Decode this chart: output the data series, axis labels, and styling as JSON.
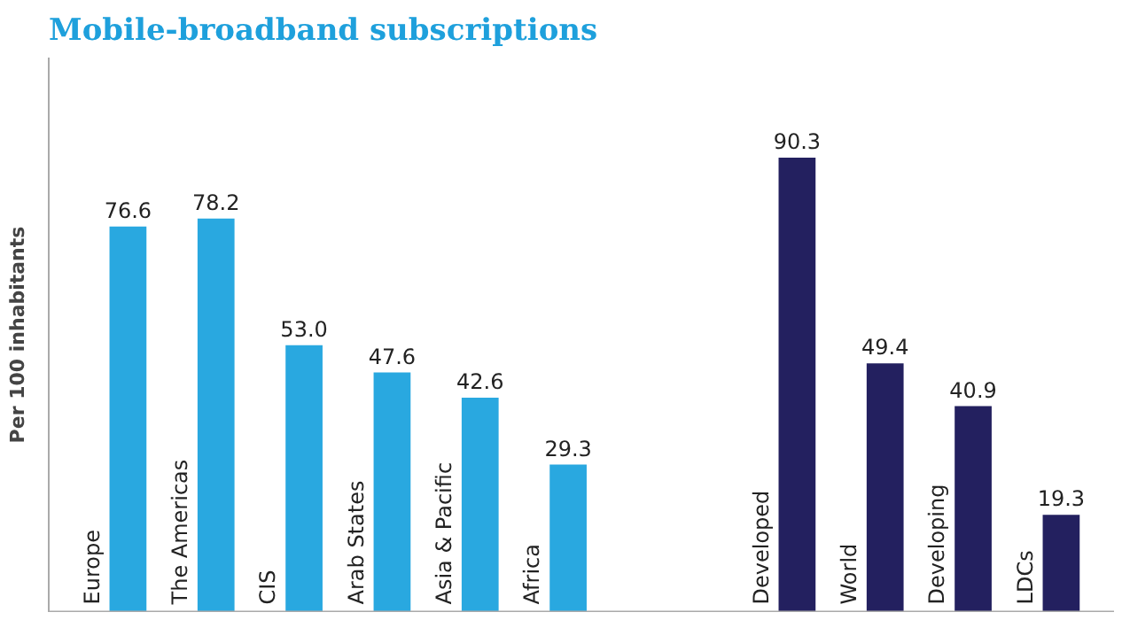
{
  "chart_data": {
    "type": "bar",
    "title": "Mobile-broadband subscriptions",
    "ylabel": "Per 100 inhabitants",
    "categories": [
      "Europe",
      "The Americas",
      "CIS",
      "Arab States",
      "Asia & Pacific",
      "Africa",
      "Developed",
      "World",
      "Developing",
      "LDCs"
    ],
    "values": [
      76.6,
      78.2,
      53.0,
      47.6,
      42.6,
      29.3,
      90.3,
      49.4,
      40.9,
      19.3
    ],
    "colors": [
      "#29a8e0",
      "#29a8e0",
      "#29a8e0",
      "#29a8e0",
      "#29a8e0",
      "#29a8e0",
      "#23205f",
      "#23205f",
      "#23205f",
      "#23205f"
    ],
    "value_labels": [
      "76.6",
      "78.2",
      "53.0",
      "47.6",
      "42.6",
      "29.3",
      "90.3",
      "49.4",
      "40.9",
      "19.3"
    ],
    "grid": false
  }
}
